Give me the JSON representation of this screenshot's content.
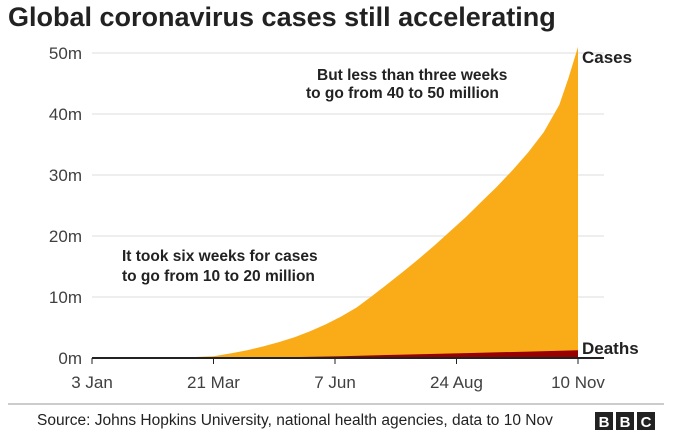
{
  "chart_data": {
    "type": "area",
    "title": "Global coronavirus cases still accelerating",
    "xlabel": "",
    "ylabel": "",
    "x_ticks": [
      "3 Jan",
      "21 Mar",
      "7 Jun",
      "24 Aug",
      "10 Nov"
    ],
    "x_tick_days": [
      0,
      78,
      156,
      234,
      312
    ],
    "ylim": [
      0,
      50
    ],
    "y_ticks": [
      0,
      10,
      20,
      30,
      40,
      50
    ],
    "y_tick_labels": [
      "0m",
      "10m",
      "20m",
      "30m",
      "40m",
      "50m"
    ],
    "grid": true,
    "series": [
      {
        "name": "Cases",
        "color": "#faab18",
        "x_days": [
          0,
          30,
          60,
          78,
          90,
          100,
          110,
          120,
          130,
          140,
          150,
          160,
          170,
          180,
          190,
          200,
          210,
          220,
          230,
          240,
          250,
          260,
          270,
          280,
          290,
          300,
          306,
          312
        ],
        "values": [
          0,
          0.01,
          0.1,
          0.3,
          0.8,
          1.3,
          1.9,
          2.6,
          3.4,
          4.4,
          5.5,
          6.8,
          8.3,
          10.2,
          12.2,
          14.2,
          16.3,
          18.5,
          20.8,
          23.1,
          25.6,
          28.1,
          30.8,
          33.7,
          37.0,
          41.5,
          46.0,
          51.0
        ]
      },
      {
        "name": "Deaths",
        "color": "#990000",
        "x_days": [
          0,
          60,
          78,
          120,
          160,
          200,
          240,
          280,
          312
        ],
        "values": [
          0,
          0.004,
          0.01,
          0.1,
          0.3,
          0.55,
          0.8,
          1.05,
          1.27
        ]
      }
    ],
    "annotations": [
      {
        "lines": [
          "But less than three weeks",
          "to go from 40 to 50 million"
        ]
      },
      {
        "lines": [
          "It took six weeks for cases",
          "to go from 10 to 20 million"
        ]
      }
    ],
    "source": "Source: Johns Hopkins University, national health agencies, data to 10 Nov",
    "brand_letters": [
      "B",
      "B",
      "C"
    ]
  }
}
